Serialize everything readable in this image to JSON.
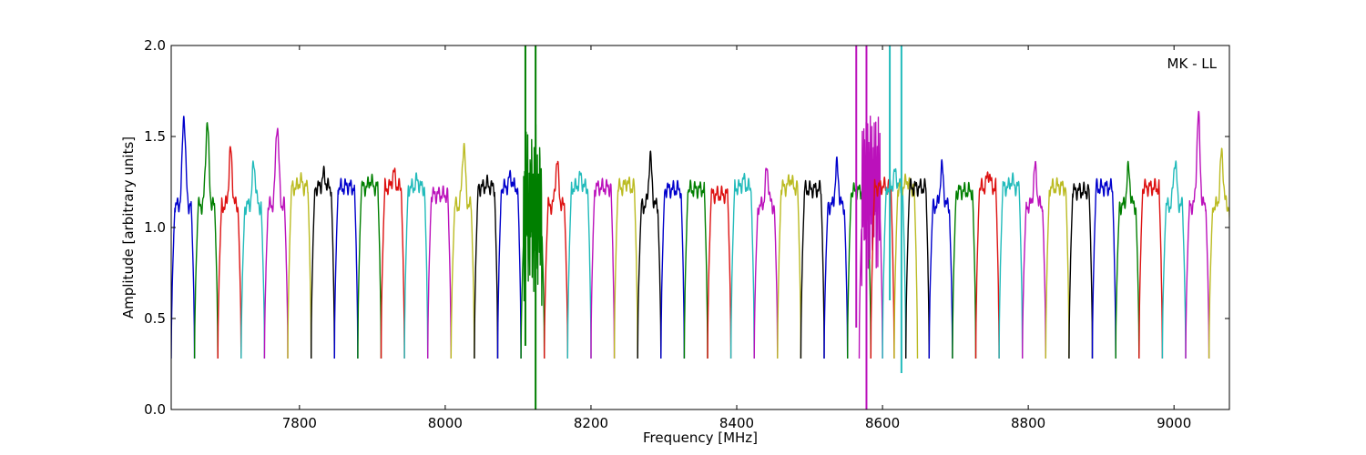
{
  "chart_data": {
    "type": "line",
    "annotation": "MK - LL",
    "xlabel": "Frequency [MHz]",
    "ylabel": "Amplitude [arbitrary units]",
    "xlim": [
      7624,
      9076
    ],
    "ylim": [
      0,
      2.0
    ],
    "xticks": [
      7800,
      8000,
      8200,
      8400,
      8600,
      8800,
      9000
    ],
    "xtick_labels": [
      "7800",
      "8000",
      "8200",
      "8400",
      "8600",
      "8800",
      "9000"
    ],
    "yticks": [
      0.0,
      0.5,
      1.0,
      1.5,
      2.0
    ],
    "ytick_labels": [
      "0.0",
      "0.5",
      "1.0",
      "1.5",
      "2.0"
    ],
    "grid": false,
    "legend": false,
    "color_cycle": [
      "#0000cc",
      "#007f00",
      "#dd1111",
      "#22bbbb",
      "#bb11bb",
      "#bbbb22",
      "#000000"
    ],
    "channel_width_mhz": 32,
    "channels": [
      {
        "start": 7624,
        "peak": 1.62,
        "color": "#0000cc"
      },
      {
        "start": 7656,
        "peak": 1.58,
        "color": "#007f00"
      },
      {
        "start": 7688,
        "peak": 1.42,
        "color": "#dd1111"
      },
      {
        "start": 7720,
        "peak": 1.35,
        "color": "#22bbbb"
      },
      {
        "start": 7752,
        "peak": 1.57,
        "color": "#bb11bb"
      },
      {
        "start": 7784,
        "peak": 1.26,
        "color": "#bbbb22"
      },
      {
        "start": 7816,
        "peak": 1.29,
        "color": "#000000"
      },
      {
        "start": 7848,
        "peak": 1.23,
        "color": "#0000cc"
      },
      {
        "start": 7880,
        "peak": 1.26,
        "color": "#007f00"
      },
      {
        "start": 7912,
        "peak": 1.3,
        "color": "#dd1111"
      },
      {
        "start": 7944,
        "peak": 1.26,
        "color": "#22bbbb"
      },
      {
        "start": 7976,
        "peak": 1.18,
        "color": "#bb11bb"
      },
      {
        "start": 8008,
        "peak": 1.45,
        "color": "#bbbb22"
      },
      {
        "start": 8040,
        "peak": 1.24,
        "color": "#000000"
      },
      {
        "start": 8072,
        "peak": 1.28,
        "color": "#0000cc"
      },
      {
        "start": 8104,
        "peak": 1.1,
        "color": "#007f00",
        "rfi": true
      },
      {
        "start": 8136,
        "peak": 1.36,
        "color": "#dd1111"
      },
      {
        "start": 8168,
        "peak": 1.28,
        "color": "#22bbbb"
      },
      {
        "start": 8200,
        "peak": 1.22,
        "color": "#bb11bb"
      },
      {
        "start": 8232,
        "peak": 1.25,
        "color": "#bbbb22"
      },
      {
        "start": 8264,
        "peak": 1.38,
        "color": "#000000"
      },
      {
        "start": 8296,
        "peak": 1.21,
        "color": "#0000cc"
      },
      {
        "start": 8328,
        "peak": 1.21,
        "color": "#007f00"
      },
      {
        "start": 8360,
        "peak": 1.18,
        "color": "#dd1111"
      },
      {
        "start": 8392,
        "peak": 1.26,
        "color": "#22bbbb"
      },
      {
        "start": 8424,
        "peak": 1.32,
        "color": "#bb11bb"
      },
      {
        "start": 8456,
        "peak": 1.27,
        "color": "#bbbb22"
      },
      {
        "start": 8488,
        "peak": 1.21,
        "color": "#000000"
      },
      {
        "start": 8520,
        "peak": 1.34,
        "color": "#0000cc"
      },
      {
        "start": 8552,
        "peak": 1.2,
        "color": "#007f00"
      },
      {
        "start": 8568,
        "peak": 1.22,
        "color": "#bb11bb",
        "rfi": true
      },
      {
        "start": 8584,
        "peak": 1.23,
        "color": "#dd1111"
      },
      {
        "start": 8600,
        "peak": 1.3,
        "color": "#22bbbb"
      },
      {
        "start": 8616,
        "peak": 1.26,
        "color": "#bbbb22"
      },
      {
        "start": 8632,
        "peak": 1.22,
        "color": "#000000"
      },
      {
        "start": 8664,
        "peak": 1.33,
        "color": "#0000cc"
      },
      {
        "start": 8696,
        "peak": 1.2,
        "color": "#007f00"
      },
      {
        "start": 8728,
        "peak": 1.3,
        "color": "#dd1111"
      },
      {
        "start": 8760,
        "peak": 1.26,
        "color": "#22bbbb"
      },
      {
        "start": 8792,
        "peak": 1.33,
        "color": "#bb11bb"
      },
      {
        "start": 8824,
        "peak": 1.23,
        "color": "#bbbb22"
      },
      {
        "start": 8856,
        "peak": 1.2,
        "color": "#000000"
      },
      {
        "start": 8888,
        "peak": 1.22,
        "color": "#0000cc"
      },
      {
        "start": 8920,
        "peak": 1.32,
        "color": "#007f00"
      },
      {
        "start": 8952,
        "peak": 1.22,
        "color": "#dd1111"
      },
      {
        "start": 8984,
        "peak": 1.37,
        "color": "#22bbbb"
      },
      {
        "start": 9016,
        "peak": 1.61,
        "color": "#bb11bb"
      },
      {
        "start": 9048,
        "peak": 1.41,
        "color": "#bbbb22"
      }
    ],
    "spikes": [
      {
        "x": 8110,
        "ymin": 0.35,
        "ymax": 2.0,
        "color": "#007f00"
      },
      {
        "x": 8124,
        "ymin": 0.0,
        "ymax": 2.0,
        "color": "#007f00"
      },
      {
        "x": 8564,
        "ymin": 0.45,
        "ymax": 2.0,
        "color": "#bb11bb"
      },
      {
        "x": 8578,
        "ymin": 0.0,
        "ymax": 2.0,
        "color": "#bb11bb"
      },
      {
        "x": 8610,
        "ymin": 0.6,
        "ymax": 2.0,
        "color": "#22bbbb"
      },
      {
        "x": 8626,
        "ymin": 0.2,
        "ymax": 2.0,
        "color": "#22bbbb"
      }
    ]
  }
}
